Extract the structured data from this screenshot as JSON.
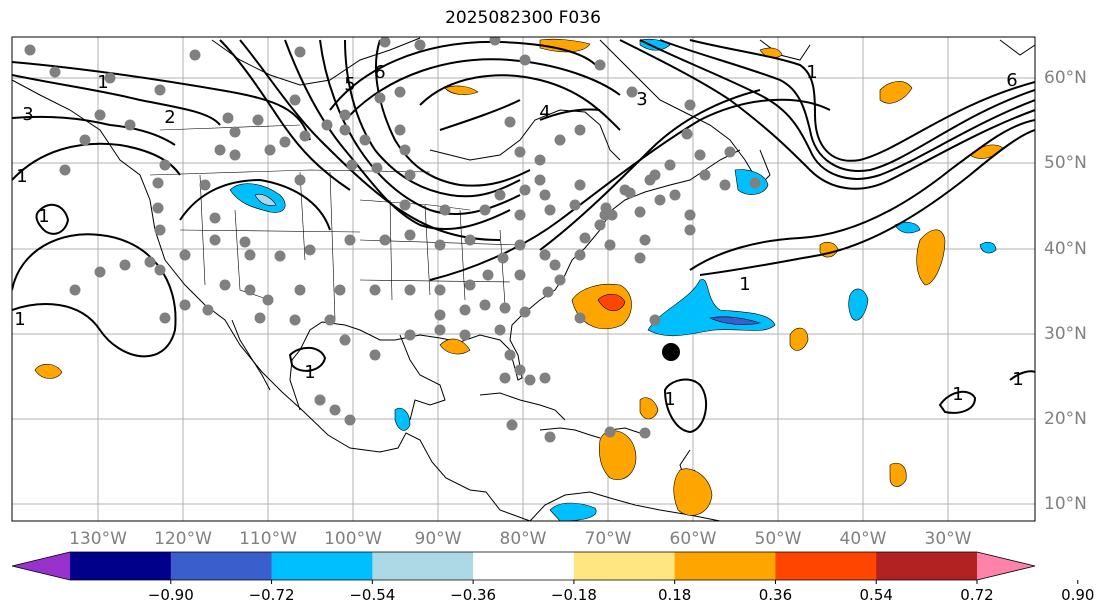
{
  "title": "2025082300 F036",
  "lon_labels": [
    "130°W",
    "120°W",
    "110°W",
    "100°W",
    "90°W",
    "80°W",
    "70°W",
    "60°W",
    "50°W",
    "40°W",
    "30°W"
  ],
  "lat_labels": [
    "60°N",
    "50°N",
    "40°N",
    "30°N",
    "20°N",
    "10°N"
  ],
  "colorbar": {
    "colors": [
      "#9932CC",
      "#00008B",
      "#3A5FCD",
      "#00BFFF",
      "#ADD8E6",
      "#FFFFFF",
      "#FFE680",
      "#FFA500",
      "#FF4500",
      "#B22222",
      "#FF82AB"
    ],
    "tick_labels": [
      "−0.90",
      "−0.72",
      "−0.54",
      "−0.36",
      "−0.18",
      "0.18",
      "0.36",
      "0.54",
      "0.72",
      "0.90"
    ]
  },
  "contour_labels": [
    "1",
    "3",
    "2",
    "1",
    "1",
    "1",
    "1",
    "1",
    "6",
    "4",
    "3",
    "5",
    "6",
    "1",
    "1",
    "1",
    "1"
  ],
  "map_colors": {
    "contour": "#000000",
    "station": "#808080",
    "grid": "#b0b0b0",
    "marker": "#000000"
  }
}
